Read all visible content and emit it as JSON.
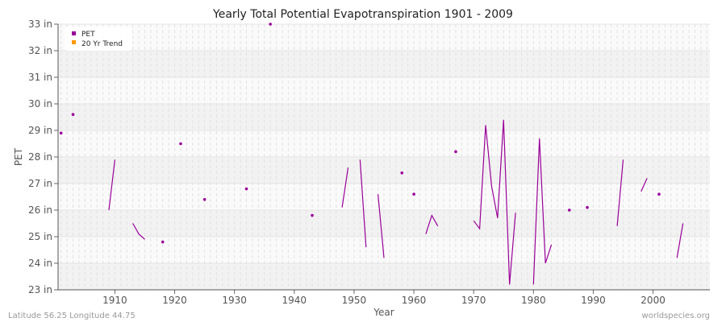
{
  "chart_data": {
    "type": "line",
    "title": "Yearly Total Potential Evapotranspiration 1901 - 2009",
    "xlabel": "Year",
    "ylabel": "PET",
    "xlim": [
      1900.5,
      2009.5
    ],
    "ylim": [
      23,
      33
    ],
    "x_ticks": [
      1910,
      1920,
      1930,
      1940,
      1950,
      1960,
      1970,
      1980,
      1990,
      2000
    ],
    "y_ticks": [
      23,
      24,
      25,
      26,
      27,
      28,
      29,
      30,
      31,
      32,
      33
    ],
    "y_tick_labels": [
      "23 in",
      "24 in",
      "25 in",
      "26 in",
      "27 in",
      "28 in",
      "29 in",
      "30 in",
      "31 in",
      "32 in",
      "33 in"
    ],
    "grid": true,
    "legend": {
      "placement": "top-left",
      "entries": [
        {
          "label": "PET",
          "color": "#990099"
        },
        {
          "label": "20 Yr Trend",
          "color": "#ff9900"
        }
      ]
    },
    "series": [
      {
        "name": "PET",
        "color": "#990099",
        "points": [
          [
            1901,
            28.9
          ],
          [
            1903,
            29.6
          ],
          [
            1909,
            26.0
          ],
          [
            1910,
            27.9
          ],
          [
            1913,
            25.5
          ],
          [
            1914,
            25.1
          ],
          [
            1915,
            24.9
          ],
          [
            1918,
            24.8
          ],
          [
            1921,
            28.5
          ],
          [
            1925,
            26.4
          ],
          [
            1932,
            26.8
          ],
          [
            1936,
            33.0
          ],
          [
            1943,
            25.8
          ],
          [
            1948,
            26.1
          ],
          [
            1949,
            27.6
          ],
          [
            1951,
            27.9
          ],
          [
            1952,
            24.6
          ],
          [
            1954,
            26.6
          ],
          [
            1955,
            24.2
          ],
          [
            1958,
            27.4
          ],
          [
            1960,
            26.6
          ],
          [
            1962,
            25.1
          ],
          [
            1963,
            25.8
          ],
          [
            1964,
            25.4
          ],
          [
            1967,
            28.2
          ],
          [
            1970,
            25.6
          ],
          [
            1971,
            25.3
          ],
          [
            1972,
            29.2
          ],
          [
            1973,
            26.9
          ],
          [
            1974,
            25.7
          ],
          [
            1975,
            29.4
          ],
          [
            1976,
            23.2
          ],
          [
            1977,
            25.9
          ],
          [
            1980,
            23.2
          ],
          [
            1981,
            28.7
          ],
          [
            1982,
            24.0
          ],
          [
            1983,
            24.7
          ],
          [
            1986,
            26.0
          ],
          [
            1989,
            26.1
          ],
          [
            1994,
            25.4
          ],
          [
            1995,
            27.9
          ],
          [
            1998,
            26.7
          ],
          [
            1999,
            27.2
          ],
          [
            2001,
            26.6
          ],
          [
            2004,
            24.2
          ],
          [
            2005,
            25.5
          ]
        ]
      }
    ]
  },
  "footer": {
    "location": "Latitude 56.25 Longitude 44.75",
    "source": "worldspecies.org"
  }
}
